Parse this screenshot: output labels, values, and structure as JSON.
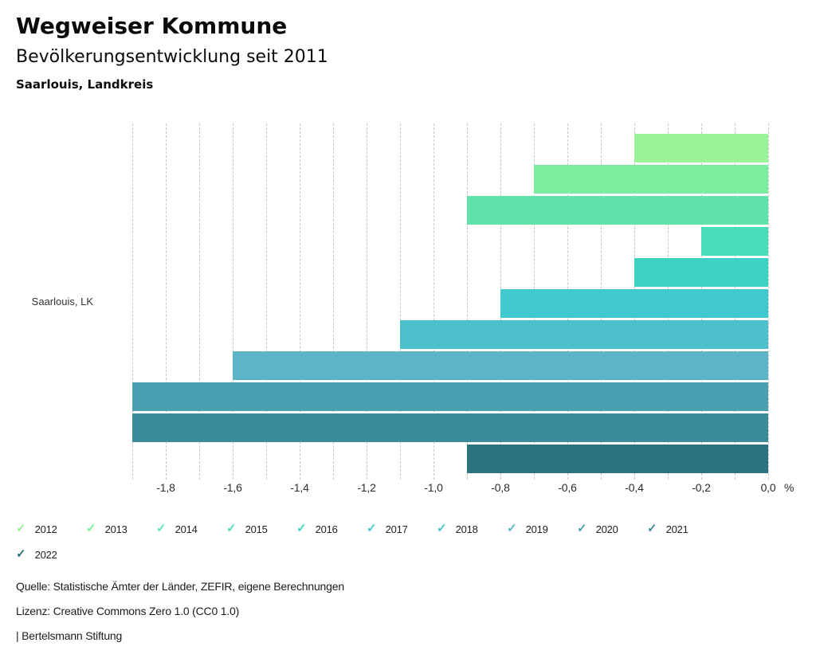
{
  "header": {
    "title": "Wegweiser Kommune",
    "subtitle": "Bevölkerungsentwicklung seit 2011",
    "region": "Saarlouis, Landkreis"
  },
  "chart_data": {
    "type": "bar",
    "orientation": "horizontal",
    "group_label": "Saarlouis, LK",
    "unit": "%",
    "xlim": [
      -1.9,
      0.0
    ],
    "grid_step": 0.1,
    "grid": "dashed-vertical",
    "legend_position": "bottom",
    "series": [
      {
        "name": "2012",
        "value": -0.4,
        "color": "#9af497"
      },
      {
        "name": "2013",
        "value": -0.7,
        "color": "#7cec9e"
      },
      {
        "name": "2014",
        "value": -0.9,
        "color": "#5fe3ab"
      },
      {
        "name": "2015",
        "value": -0.2,
        "color": "#4adcb9"
      },
      {
        "name": "2016",
        "value": -0.4,
        "color": "#3cd3c5"
      },
      {
        "name": "2017",
        "value": -0.8,
        "color": "#3fc9cf"
      },
      {
        "name": "2018",
        "value": -1.1,
        "color": "#4cc0cb"
      },
      {
        "name": "2019",
        "value": -1.6,
        "color": "#5cb4c6"
      },
      {
        "name": "2020",
        "value": -1.9,
        "color": "#4aa0b1"
      },
      {
        "name": "2021",
        "value": -1.9,
        "color": "#3c8b9b"
      },
      {
        "name": "2022",
        "value": -0.9,
        "color": "#2b7381"
      }
    ],
    "x_ticks": [
      {
        "value": -1.8,
        "label": "-1,8"
      },
      {
        "value": -1.6,
        "label": "-1,6"
      },
      {
        "value": -1.4,
        "label": "-1,4"
      },
      {
        "value": -1.2,
        "label": "-1,2"
      },
      {
        "value": -1.0,
        "label": "-1,0"
      },
      {
        "value": -0.8,
        "label": "-0,8"
      },
      {
        "value": -0.6,
        "label": "-0,6"
      },
      {
        "value": -0.4,
        "label": "-0,4"
      },
      {
        "value": -0.2,
        "label": "-0,2"
      },
      {
        "value": 0.0,
        "label": "0,0"
      }
    ],
    "legend_icon": "check-icon"
  },
  "footer": {
    "source": "Quelle: Statistische Ämter der Länder, ZEFIR, eigene Berechnungen",
    "license": "Lizenz: Creative Commons Zero 1.0 (CC0 1.0)",
    "attribution": "| Bertelsmann Stiftung"
  }
}
